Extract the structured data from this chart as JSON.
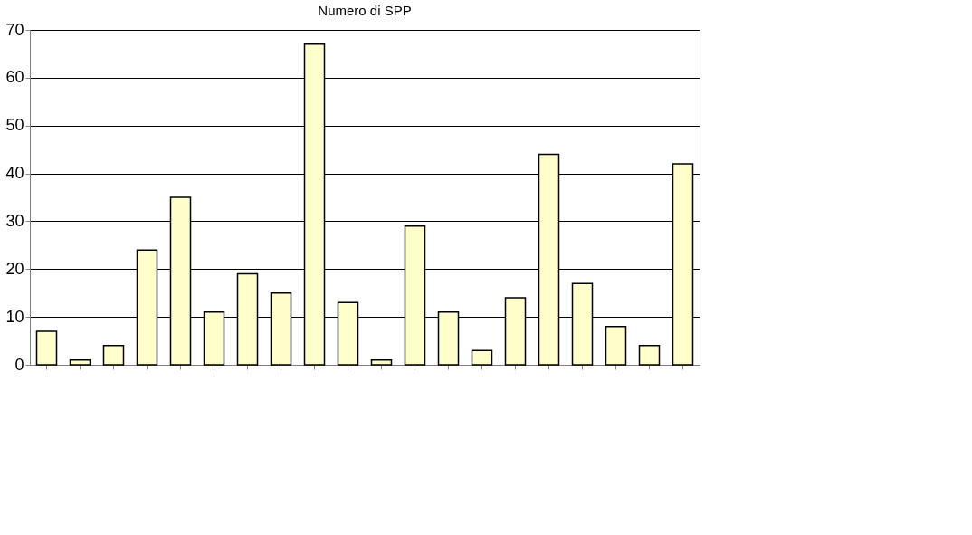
{
  "chart_data": {
    "type": "bar",
    "title": "Numero di SPP",
    "categories": [
      null,
      null,
      null,
      null,
      null,
      null,
      null,
      null,
      null,
      null,
      null,
      null,
      null,
      null,
      null,
      null,
      null,
      null,
      null,
      null
    ],
    "values": [
      7,
      1,
      4,
      24,
      35,
      11,
      19,
      15,
      67,
      13,
      1,
      29,
      11,
      3,
      14,
      44,
      17,
      8,
      4,
      42
    ],
    "color": "#ffffcc",
    "ylim": [
      0,
      70
    ],
    "yticks": [
      0,
      10,
      20,
      30,
      40,
      50,
      60,
      70
    ],
    "grid": "y"
  }
}
